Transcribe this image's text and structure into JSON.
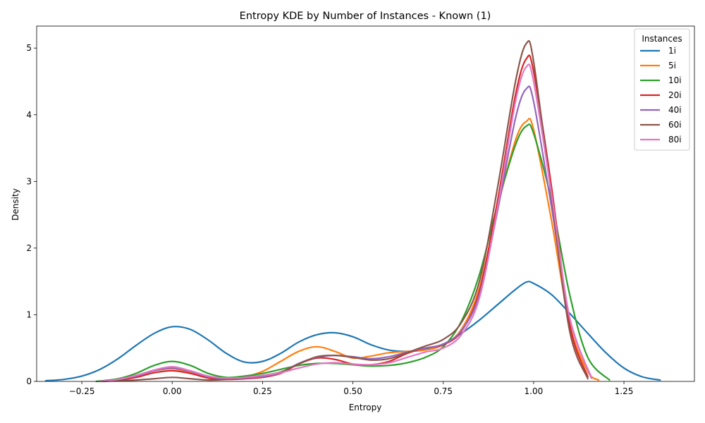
{
  "chart_data": {
    "type": "line",
    "title": "Entropy KDE by Number of Instances - Known (1)",
    "xlabel": "Entropy",
    "ylabel": "Density",
    "xlim": [
      -0.375,
      1.445
    ],
    "ylim": [
      0,
      5.33
    ],
    "x_ticks": [
      -0.25,
      0.0,
      0.25,
      0.5,
      0.75,
      1.0,
      1.25
    ],
    "x_tick_labels": [
      "−0.25",
      "0.00",
      "0.25",
      "0.50",
      "0.75",
      "1.00",
      "1.25"
    ],
    "y_ticks": [
      0,
      1,
      2,
      3,
      4,
      5
    ],
    "y_tick_labels": [
      "0",
      "1",
      "2",
      "3",
      "4",
      "5"
    ],
    "grid": false,
    "legend": {
      "title": "Instances",
      "position": "top-right"
    },
    "series": [
      {
        "name": "1i",
        "color": "#1f77b4",
        "x": [
          -0.35,
          -0.3,
          -0.25,
          -0.2,
          -0.15,
          -0.1,
          -0.05,
          0.0,
          0.05,
          0.1,
          0.15,
          0.2,
          0.25,
          0.3,
          0.35,
          0.4,
          0.45,
          0.5,
          0.55,
          0.6,
          0.65,
          0.7,
          0.75,
          0.8,
          0.85,
          0.9,
          0.95,
          0.98,
          1.0,
          1.05,
          1.1,
          1.15,
          1.2,
          1.25,
          1.3,
          1.35
        ],
        "y": [
          0.01,
          0.03,
          0.08,
          0.18,
          0.34,
          0.54,
          0.72,
          0.82,
          0.78,
          0.62,
          0.42,
          0.29,
          0.3,
          0.42,
          0.59,
          0.7,
          0.73,
          0.67,
          0.55,
          0.47,
          0.45,
          0.48,
          0.56,
          0.72,
          0.92,
          1.15,
          1.38,
          1.49,
          1.47,
          1.3,
          1.02,
          0.72,
          0.43,
          0.2,
          0.07,
          0.02
        ]
      },
      {
        "name": "5i",
        "color": "#ff7f0e",
        "x": [
          -0.2,
          -0.15,
          -0.1,
          -0.05,
          0.0,
          0.05,
          0.1,
          0.15,
          0.2,
          0.25,
          0.3,
          0.35,
          0.4,
          0.45,
          0.5,
          0.55,
          0.6,
          0.65,
          0.7,
          0.75,
          0.8,
          0.85,
          0.9,
          0.95,
          0.98,
          1.0,
          1.05,
          1.1,
          1.15,
          1.18
        ],
        "y": [
          0.0,
          0.02,
          0.09,
          0.16,
          0.19,
          0.14,
          0.07,
          0.05,
          0.07,
          0.15,
          0.3,
          0.45,
          0.52,
          0.45,
          0.35,
          0.38,
          0.43,
          0.45,
          0.47,
          0.55,
          0.78,
          1.4,
          2.6,
          3.62,
          3.9,
          3.78,
          2.4,
          0.85,
          0.15,
          0.02
        ]
      },
      {
        "name": "10i",
        "color": "#2ca02c",
        "x": [
          -0.21,
          -0.15,
          -0.1,
          -0.05,
          0.0,
          0.05,
          0.1,
          0.15,
          0.2,
          0.25,
          0.3,
          0.35,
          0.4,
          0.45,
          0.5,
          0.55,
          0.6,
          0.65,
          0.7,
          0.75,
          0.8,
          0.85,
          0.9,
          0.95,
          0.98,
          1.0,
          1.05,
          1.1,
          1.15,
          1.21
        ],
        "y": [
          0.0,
          0.04,
          0.12,
          0.24,
          0.3,
          0.24,
          0.12,
          0.06,
          0.08,
          0.12,
          0.18,
          0.24,
          0.27,
          0.27,
          0.25,
          0.23,
          0.24,
          0.28,
          0.36,
          0.52,
          0.9,
          1.6,
          2.65,
          3.55,
          3.83,
          3.72,
          2.7,
          1.3,
          0.36,
          0.02
        ]
      },
      {
        "name": "20i",
        "color": "#d62728",
        "x": [
          -0.19,
          -0.15,
          -0.1,
          -0.05,
          0.0,
          0.05,
          0.1,
          0.15,
          0.2,
          0.25,
          0.3,
          0.35,
          0.4,
          0.45,
          0.5,
          0.55,
          0.6,
          0.65,
          0.7,
          0.75,
          0.8,
          0.85,
          0.9,
          0.95,
          0.98,
          1.0,
          1.05,
          1.1,
          1.15
        ],
        "y": [
          0.0,
          0.02,
          0.06,
          0.13,
          0.16,
          0.12,
          0.05,
          0.03,
          0.04,
          0.06,
          0.12,
          0.26,
          0.35,
          0.33,
          0.26,
          0.25,
          0.3,
          0.42,
          0.5,
          0.55,
          0.75,
          1.35,
          2.7,
          4.3,
          4.84,
          4.65,
          2.9,
          0.85,
          0.07
        ]
      },
      {
        "name": "40i",
        "color": "#9467bd",
        "x": [
          -0.2,
          -0.15,
          -0.1,
          -0.05,
          0.0,
          0.05,
          0.1,
          0.15,
          0.2,
          0.25,
          0.3,
          0.35,
          0.4,
          0.45,
          0.5,
          0.55,
          0.6,
          0.65,
          0.7,
          0.75,
          0.8,
          0.85,
          0.9,
          0.95,
          0.98,
          1.0,
          1.05,
          1.1,
          1.16
        ],
        "y": [
          0.0,
          0.03,
          0.08,
          0.16,
          0.2,
          0.15,
          0.07,
          0.04,
          0.05,
          0.07,
          0.13,
          0.27,
          0.36,
          0.39,
          0.37,
          0.34,
          0.37,
          0.44,
          0.5,
          0.56,
          0.76,
          1.3,
          2.55,
          3.95,
          4.39,
          4.2,
          2.6,
          0.95,
          0.05
        ]
      },
      {
        "name": "60i",
        "color": "#8c564b",
        "x": [
          -0.2,
          -0.15,
          -0.1,
          -0.05,
          0.0,
          0.05,
          0.1,
          0.15,
          0.2,
          0.25,
          0.3,
          0.35,
          0.4,
          0.45,
          0.5,
          0.55,
          0.6,
          0.65,
          0.7,
          0.75,
          0.8,
          0.85,
          0.9,
          0.95,
          0.98,
          1.0,
          1.05,
          1.1,
          1.15
        ],
        "y": [
          0.0,
          0.01,
          0.02,
          0.04,
          0.06,
          0.04,
          0.02,
          0.03,
          0.06,
          0.09,
          0.14,
          0.26,
          0.37,
          0.39,
          0.36,
          0.32,
          0.34,
          0.43,
          0.53,
          0.63,
          0.88,
          1.5,
          2.9,
          4.5,
          5.07,
          4.8,
          2.75,
          0.75,
          0.04
        ]
      },
      {
        "name": "80i",
        "color": "#e377c2",
        "x": [
          -0.2,
          -0.15,
          -0.1,
          -0.05,
          0.0,
          0.05,
          0.1,
          0.15,
          0.2,
          0.25,
          0.3,
          0.35,
          0.4,
          0.45,
          0.5,
          0.55,
          0.6,
          0.65,
          0.7,
          0.75,
          0.8,
          0.85,
          0.9,
          0.95,
          0.98,
          1.0,
          1.05,
          1.1,
          1.16
        ],
        "y": [
          0.0,
          0.03,
          0.09,
          0.17,
          0.22,
          0.16,
          0.08,
          0.05,
          0.06,
          0.09,
          0.13,
          0.2,
          0.26,
          0.28,
          0.26,
          0.25,
          0.28,
          0.36,
          0.44,
          0.5,
          0.7,
          1.25,
          2.6,
          4.2,
          4.72,
          4.5,
          2.8,
          0.95,
          0.06
        ]
      }
    ]
  }
}
